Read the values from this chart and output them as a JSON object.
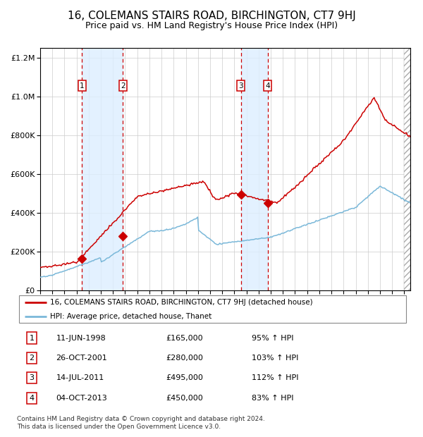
{
  "title": "16, COLEMANS STAIRS ROAD, BIRCHINGTON, CT7 9HJ",
  "subtitle": "Price paid vs. HM Land Registry's House Price Index (HPI)",
  "title_fontsize": 11,
  "subtitle_fontsize": 9,
  "legend_line1": "16, COLEMANS STAIRS ROAD, BIRCHINGTON, CT7 9HJ (detached house)",
  "legend_line2": "HPI: Average price, detached house, Thanet",
  "footer": "Contains HM Land Registry data © Crown copyright and database right 2024.\nThis data is licensed under the Open Government Licence v3.0.",
  "transactions": [
    {
      "num": 1,
      "date_label": "11-JUN-1998",
      "price": 165000,
      "pct": "95%",
      "arrow": "↑",
      "x_year": 1998.44
    },
    {
      "num": 2,
      "date_label": "26-OCT-2001",
      "price": 280000,
      "pct": "103%",
      "arrow": "↑",
      "x_year": 2001.82
    },
    {
      "num": 3,
      "date_label": "14-JUL-2011",
      "price": 495000,
      "pct": "112%",
      "arrow": "↑",
      "x_year": 2011.53
    },
    {
      "num": 4,
      "date_label": "04-OCT-2013",
      "price": 450000,
      "pct": "83%",
      "arrow": "↑",
      "x_year": 2013.75
    }
  ],
  "hpi_color": "#7ab8d9",
  "price_color": "#cc0000",
  "marker_color": "#cc0000",
  "band_color": "#ddeeff",
  "dashed_color": "#cc0000",
  "background_color": "#ffffff",
  "grid_color": "#cccccc",
  "ylim": [
    0,
    1250000
  ],
  "xlim_start": 1995,
  "xlim_end": 2025.5
}
